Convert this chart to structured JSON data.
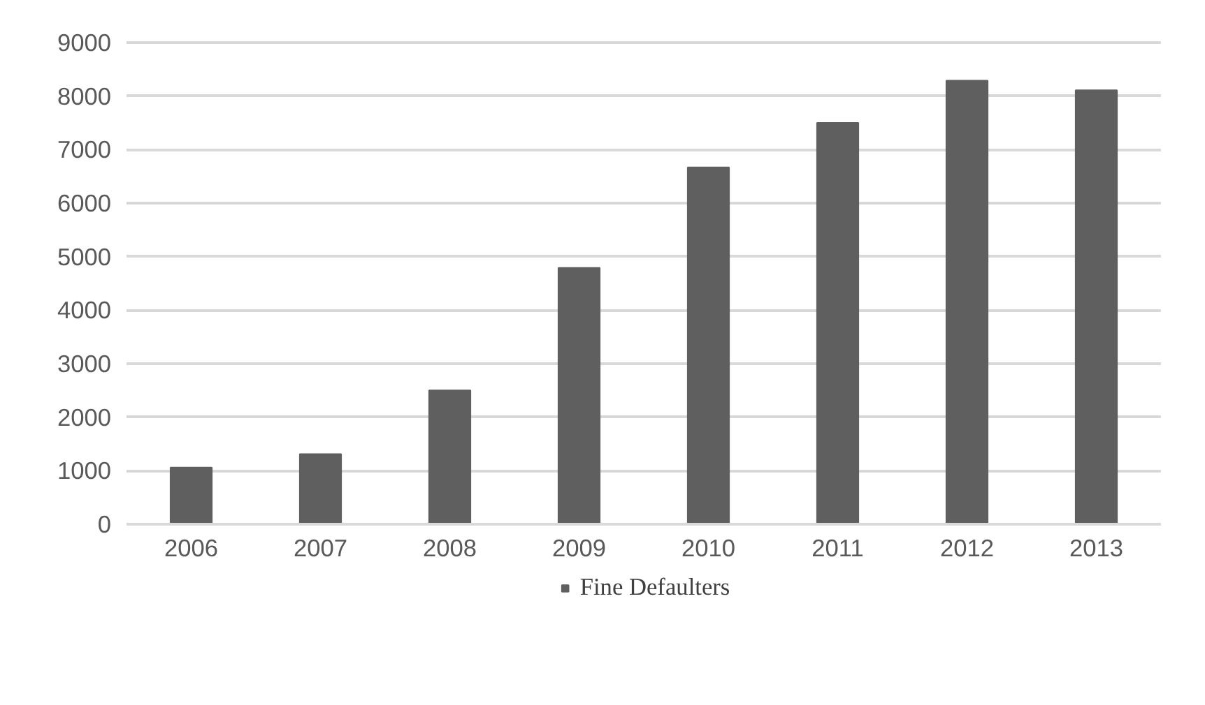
{
  "chart_data": {
    "type": "bar",
    "categories": [
      "2006",
      "2007",
      "2008",
      "2009",
      "2010",
      "2011",
      "2012",
      "2013"
    ],
    "series": [
      {
        "name": "Fine Defaulters",
        "color": "#5f5f5f",
        "values": [
          1060,
          1310,
          2500,
          4790,
          6670,
          7500,
          8290,
          8110
        ]
      }
    ],
    "ylim": [
      0,
      9000
    ],
    "yticks": [
      0,
      1000,
      2000,
      3000,
      4000,
      5000,
      6000,
      7000,
      8000,
      9000
    ],
    "grid": "y",
    "legend": "bottom"
  }
}
